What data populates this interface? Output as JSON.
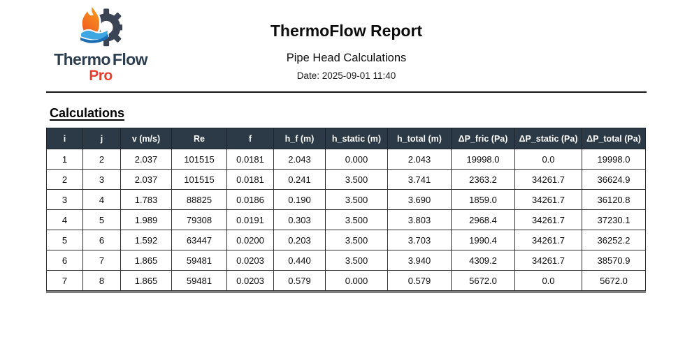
{
  "logo": {
    "brand_thermo": "Thermo",
    "brand_flow": "Flow",
    "brand_pro": "Pro"
  },
  "header": {
    "title": "ThermoFlow Report",
    "subtitle": "Pipe Head Calculations",
    "date_line": "Date: 2025-09-01 11:40"
  },
  "section": {
    "heading": "Calculations"
  },
  "table": {
    "columns": [
      "i",
      "j",
      "v (m/s)",
      "Re",
      "f",
      "h_f (m)",
      "h_static (m)",
      "h_total (m)",
      "ΔP_fric (Pa)",
      "ΔP_static (Pa)",
      "ΔP_total (Pa)"
    ],
    "rows": [
      [
        "1",
        "2",
        "2.037",
        "101515",
        "0.0181",
        "2.043",
        "0.000",
        "2.043",
        "19998.0",
        "0.0",
        "19998.0"
      ],
      [
        "2",
        "3",
        "2.037",
        "101515",
        "0.0181",
        "0.241",
        "3.500",
        "3.741",
        "2363.2",
        "34261.7",
        "36624.9"
      ],
      [
        "3",
        "4",
        "1.783",
        "88825",
        "0.0186",
        "0.190",
        "3.500",
        "3.690",
        "1859.0",
        "34261.7",
        "36120.8"
      ],
      [
        "4",
        "5",
        "1.989",
        "79308",
        "0.0191",
        "0.303",
        "3.500",
        "3.803",
        "2968.4",
        "34261.7",
        "37230.1"
      ],
      [
        "5",
        "6",
        "1.592",
        "63447",
        "0.0200",
        "0.203",
        "3.500",
        "3.703",
        "1990.4",
        "34261.7",
        "36252.2"
      ],
      [
        "6",
        "7",
        "1.865",
        "59481",
        "0.0203",
        "0.440",
        "3.500",
        "3.940",
        "4309.2",
        "34261.7",
        "38570.9"
      ],
      [
        "7",
        "8",
        "1.865",
        "59481",
        "0.0203",
        "0.579",
        "0.000",
        "0.579",
        "5672.0",
        "0.0",
        "5672.0"
      ]
    ]
  },
  "colors": {
    "header_bg": "#2c3a48",
    "brand_navy": "#2c3e50",
    "brand_red": "#e8402f",
    "gear": "#3b4454",
    "flame_top": "#f9a01b",
    "flame_bottom": "#ee4e23",
    "wave_light": "#3ea6e0",
    "wave_dark": "#1d6fb5"
  }
}
